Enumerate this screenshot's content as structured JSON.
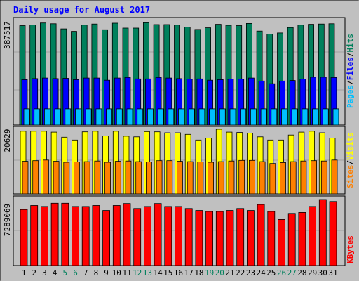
{
  "title": "Daily usage for August 2017",
  "colors": {
    "background": "#c0c0c0",
    "border": "#000000",
    "title_text": "#0000ff",
    "hits": "#00805c",
    "files": "#0000ff",
    "pages": "#00c0ff",
    "visits": "#ffff00",
    "sites": "#ff8000",
    "kbytes": "#ff0000",
    "weekday_label": "#000000",
    "weekend_label": "#00805c"
  },
  "panels": {
    "top": {
      "max_label": "387517",
      "legend": [
        "Pages",
        "/",
        "Files",
        "/",
        "Hits"
      ]
    },
    "middle": {
      "max_label": "20629",
      "legend": [
        "Sites",
        "/",
        "Visits"
      ]
    },
    "bottom": {
      "max_label": "7289069",
      "legend": [
        "KBytes"
      ]
    }
  },
  "chart_data": {
    "type": "bar",
    "title": "Daily usage for August 2017",
    "categories": [
      "1",
      "2",
      "3",
      "4",
      "5",
      "6",
      "7",
      "8",
      "9",
      "10",
      "11",
      "12",
      "13",
      "14",
      "15",
      "16",
      "17",
      "18",
      "19",
      "20",
      "21",
      "22",
      "23",
      "24",
      "25",
      "26",
      "27",
      "28",
      "29",
      "30",
      "31"
    ],
    "weekend_days": [
      "5",
      "6",
      "12",
      "13",
      "19",
      "20",
      "26",
      "27"
    ],
    "panels": [
      {
        "name": "top",
        "ymax": 387517,
        "series": [
          {
            "name": "Hits",
            "values": [
              368000,
              371000,
              378000,
              375000,
              356000,
              347000,
              370000,
              374000,
              353000,
              377000,
              359000,
              359000,
              379000,
              372000,
              372000,
              370000,
              363000,
              354000,
              360000,
              373000,
              369000,
              368000,
              376000,
              348000,
              337000,
              341000,
              361000,
              370000,
              373000,
              374000,
              375000
            ]
          },
          {
            "name": "Files",
            "values": [
              168000,
              172000,
              174000,
              172000,
              173000,
              168000,
              174000,
              174000,
              166000,
              174000,
              176000,
              171000,
              171000,
              176000,
              174000,
              172000,
              170000,
              171000,
              166000,
              168000,
              170000,
              170000,
              174000,
              163000,
              153000,
              163000,
              165000,
              170000,
              177000,
              177000,
              176000
            ]
          },
          {
            "name": "Pages",
            "values": [
              60000,
              60000,
              60000,
              60000,
              60000,
              60000,
              60000,
              60000,
              60000,
              60000,
              60000,
              60000,
              60000,
              60000,
              60000,
              60000,
              60000,
              60000,
              60000,
              60000,
              60000,
              60000,
              60000,
              60000,
              60000,
              60000,
              60000,
              60000,
              60000,
              60000,
              60000
            ]
          }
        ]
      },
      {
        "name": "middle",
        "ymax": 20629,
        "series": [
          {
            "name": "Visits",
            "values": [
              20000,
              20000,
              20000,
              19700,
              18100,
              17200,
              19800,
              20000,
              18500,
              20000,
              18400,
              18200,
              19900,
              19800,
              19500,
              19500,
              19000,
              17200,
              17800,
              20629,
              19700,
              19600,
              19400,
              18200,
              17200,
              17200,
              18800,
              19700,
              20000,
              19500,
              17800
            ]
          },
          {
            "name": "Sites",
            "values": [
              10400,
              10600,
              10800,
              10400,
              10100,
              10200,
              10300,
              10500,
              10100,
              10400,
              10500,
              10300,
              10200,
              10600,
              10600,
              10400,
              10300,
              10200,
              10100,
              10300,
              10500,
              10700,
              10700,
              10300,
              9700,
              10000,
              10300,
              10500,
              10600,
              10500,
              10800
            ]
          }
        ]
      },
      {
        "name": "bottom",
        "ymax": 7289069,
        "series": [
          {
            "name": "KBytes",
            "values": [
              6190000,
              6630000,
              6520000,
              6880000,
              6880000,
              6520000,
              6520000,
              6630000,
              6080000,
              6630000,
              6850000,
              6300000,
              6520000,
              6850000,
              6520000,
              6520000,
              6300000,
              6080000,
              5970000,
              5970000,
              6080000,
              6300000,
              6080000,
              6740000,
              5970000,
              5090000,
              5750000,
              5860000,
              6520000,
              7289069,
              7070000
            ]
          }
        ]
      }
    ]
  }
}
